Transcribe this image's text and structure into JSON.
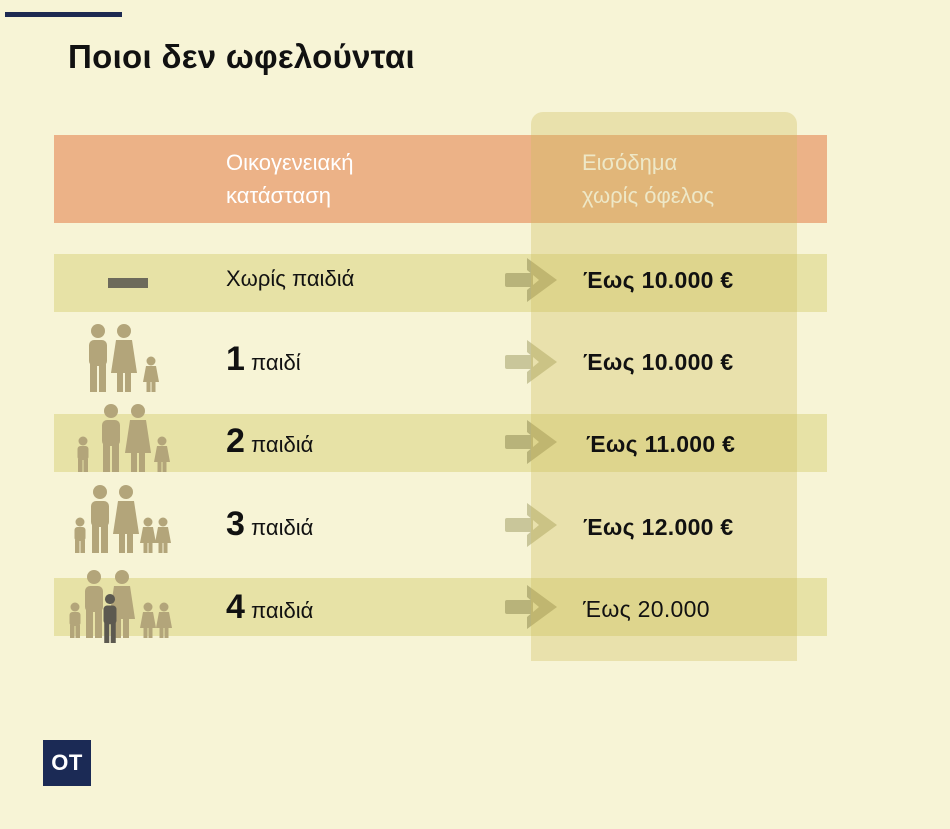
{
  "title": "Ποιοι δεν ωφελούνται",
  "header": {
    "col1": "Οικογενειακή\nκατάσταση",
    "col2": "Εισόδημα\nχωρίς όφελος"
  },
  "rows": [
    {
      "label": "Χωρίς παιδιά",
      "number": "",
      "value": "Έως 10.000 €",
      "icon": "dash-icon"
    },
    {
      "label": "παιδί",
      "number": "1",
      "value": "Έως 10.000 €",
      "icon": "family-1-child-icon"
    },
    {
      "label": "παιδιά",
      "number": "2",
      "value": "Έως 11.000 €",
      "icon": "family-2-children-icon"
    },
    {
      "label": "παιδιά",
      "number": "3",
      "value": "Έως 12.000 €",
      "icon": "family-3-children-icon"
    },
    {
      "label": "παιδιά",
      "number": "4",
      "value": "Έως 20.000",
      "icon": "family-4-children-icon"
    }
  ],
  "logo": "OT",
  "colors": {
    "background": "#f7f4d6",
    "header_band": "#ecb287",
    "row_band": "#e7e2a6",
    "icon": "#b3a57a",
    "arrow": "#b8b37a",
    "logo_bg": "#1b2a55"
  }
}
